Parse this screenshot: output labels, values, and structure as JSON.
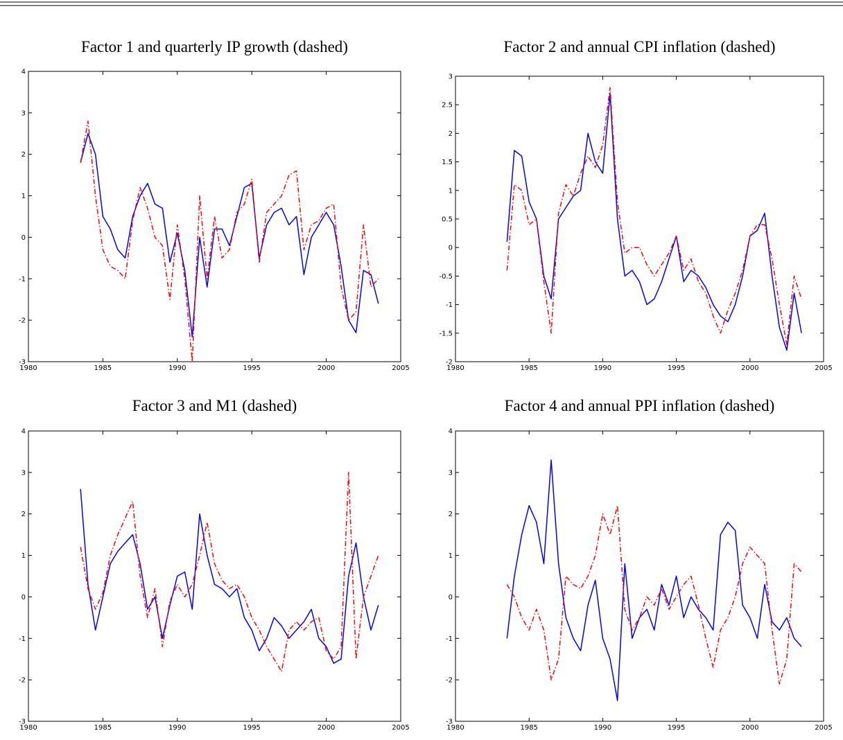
{
  "chart_data": [
    {
      "type": "line",
      "title": "Factor 1 and quarterly IP growth (dashed)",
      "x": [
        1983.5,
        1984,
        1984.5,
        1985,
        1985.5,
        1986,
        1986.5,
        1987,
        1987.5,
        1988,
        1988.5,
        1989,
        1989.5,
        1990,
        1990.5,
        1991,
        1991.5,
        1992,
        1992.5,
        1993,
        1993.5,
        1994,
        1994.5,
        1995,
        1995.5,
        1996,
        1996.5,
        1997,
        1997.5,
        1998,
        1998.5,
        1999,
        1999.5,
        2000,
        2000.5,
        2001,
        2001.5,
        2002,
        2002.5,
        2003,
        2003.5
      ],
      "series": [
        {
          "color": "#0000ff",
          "style": "solid",
          "values": [
            1.8,
            2.5,
            2.0,
            0.5,
            0.2,
            -0.3,
            -0.5,
            0.5,
            1.0,
            1.3,
            0.8,
            0.7,
            -0.6,
            0.1,
            -0.8,
            -2.4,
            0.0,
            -1.2,
            0.2,
            0.2,
            -0.2,
            0.5,
            1.2,
            1.3,
            -0.5,
            0.3,
            0.6,
            0.7,
            0.3,
            0.5,
            -0.9,
            0.0,
            0.3,
            0.6,
            0.3,
            -0.7,
            -2.0,
            -2.3,
            -0.8,
            -0.9,
            -1.6
          ]
        },
        {
          "color": "#ff0000",
          "style": "dashdot",
          "values": [
            1.8,
            2.8,
            1.0,
            -0.3,
            -0.7,
            -0.8,
            -1.0,
            0.4,
            1.2,
            0.7,
            0.0,
            -0.2,
            -1.5,
            0.3,
            -1.0,
            -3.0,
            1.0,
            -1.0,
            0.5,
            -0.5,
            -0.3,
            0.6,
            0.8,
            1.4,
            -0.6,
            0.6,
            0.8,
            1.0,
            1.5,
            1.6,
            -0.3,
            0.3,
            0.4,
            0.7,
            0.8,
            -1.2,
            -2.0,
            -1.8,
            0.3,
            -1.2,
            -1.0
          ]
        }
      ],
      "xlim": [
        1980,
        2005
      ],
      "xticks": [
        1980,
        1985,
        1990,
        1995,
        2000,
        2005
      ],
      "ylim": [
        -3,
        4
      ],
      "yticks": [
        -3,
        -2,
        -1,
        0,
        1,
        2,
        3,
        4
      ]
    },
    {
      "type": "line",
      "title": "Factor 2 and annual CPI inflation (dashed)",
      "x": [
        1983.5,
        1984,
        1984.5,
        1985,
        1985.5,
        1986,
        1986.5,
        1987,
        1987.5,
        1988,
        1988.5,
        1989,
        1989.5,
        1990,
        1990.5,
        1991,
        1991.5,
        1992,
        1992.5,
        1993,
        1993.5,
        1994,
        1994.5,
        1995,
        1995.5,
        1996,
        1996.5,
        1997,
        1997.5,
        1998,
        1998.5,
        1999,
        1999.5,
        2000,
        2000.5,
        2001,
        2001.5,
        2002,
        2002.5,
        2003,
        2003.5
      ],
      "series": [
        {
          "color": "#0000ff",
          "style": "solid",
          "values": [
            0.1,
            1.7,
            1.6,
            0.8,
            0.5,
            -0.5,
            -0.9,
            0.5,
            0.7,
            0.9,
            1.0,
            2.0,
            1.5,
            1.3,
            2.7,
            0.5,
            -0.5,
            -0.4,
            -0.6,
            -1.0,
            -0.9,
            -0.6,
            -0.2,
            0.2,
            -0.6,
            -0.4,
            -0.5,
            -0.7,
            -1.0,
            -1.2,
            -1.3,
            -1.0,
            -0.5,
            0.2,
            0.3,
            0.6,
            -0.5,
            -1.4,
            -1.8,
            -0.8,
            -1.5
          ]
        },
        {
          "color": "#ff0000",
          "style": "dashdot",
          "values": [
            -0.4,
            1.1,
            1.0,
            0.4,
            0.5,
            -0.6,
            -1.5,
            0.6,
            1.1,
            0.9,
            1.3,
            1.6,
            1.4,
            1.8,
            2.8,
            0.8,
            -0.1,
            0.0,
            0.0,
            -0.3,
            -0.5,
            -0.3,
            -0.1,
            0.2,
            -0.4,
            -0.2,
            -0.6,
            -0.8,
            -1.2,
            -1.5,
            -1.1,
            -0.8,
            -0.4,
            0.2,
            0.4,
            0.4,
            -0.2,
            -1.0,
            -1.7,
            -0.5,
            -0.9
          ]
        }
      ],
      "xlim": [
        1980,
        2005
      ],
      "xticks": [
        1980,
        1985,
        1990,
        1995,
        2000,
        2005
      ],
      "ylim": [
        -2,
        3
      ],
      "yticks": [
        -2,
        -1.5,
        -1,
        -0.5,
        0,
        0.5,
        1,
        1.5,
        2,
        2.5,
        3
      ]
    },
    {
      "type": "line",
      "title": "Factor 3 and M1 (dashed)",
      "x": [
        1983.5,
        1984,
        1984.5,
        1985,
        1985.5,
        1986,
        1986.5,
        1987,
        1987.5,
        1988,
        1988.5,
        1989,
        1989.5,
        1990,
        1990.5,
        1991,
        1991.5,
        1992,
        1992.5,
        1993,
        1993.5,
        1994,
        1994.5,
        1995,
        1995.5,
        1996,
        1996.5,
        1997,
        1997.5,
        1998,
        1998.5,
        1999,
        1999.5,
        2000,
        2000.5,
        2001,
        2001.5,
        2002,
        2002.5,
        2003,
        2003.5
      ],
      "series": [
        {
          "color": "#0000ff",
          "style": "solid",
          "values": [
            2.6,
            0.3,
            -0.8,
            0.0,
            0.8,
            1.1,
            1.3,
            1.5,
            0.8,
            -0.3,
            0.0,
            -1.0,
            -0.2,
            0.5,
            0.6,
            -0.3,
            2.0,
            1.0,
            0.3,
            0.2,
            0.0,
            0.2,
            -0.5,
            -0.8,
            -1.3,
            -1.0,
            -0.5,
            -0.7,
            -1.0,
            -0.8,
            -0.6,
            -0.3,
            -1.0,
            -1.2,
            -1.6,
            -1.5,
            0.5,
            1.3,
            0.0,
            -0.8,
            -0.2
          ]
        },
        {
          "color": "#ff0000",
          "style": "dashdot",
          "values": [
            1.2,
            0.2,
            -0.3,
            0.1,
            1.0,
            1.5,
            1.9,
            2.3,
            0.5,
            -0.5,
            0.2,
            -1.2,
            -0.1,
            0.3,
            0.0,
            0.3,
            1.0,
            1.8,
            0.8,
            0.4,
            0.2,
            0.3,
            0.0,
            -0.5,
            -0.8,
            -1.2,
            -1.5,
            -1.8,
            -0.8,
            -0.6,
            -0.8,
            -0.6,
            -0.5,
            -1.3,
            -1.5,
            -1.2,
            3.0,
            -1.5,
            0.0,
            0.5,
            1.0
          ]
        }
      ],
      "xlim": [
        1980,
        2005
      ],
      "xticks": [
        1980,
        1985,
        1990,
        1995,
        2000,
        2005
      ],
      "ylim": [
        -3,
        4
      ],
      "yticks": [
        -3,
        -2,
        -1,
        0,
        1,
        2,
        3,
        4
      ]
    },
    {
      "type": "line",
      "title": "Factor 4 and annual PPI inflation (dashed)",
      "x": [
        1983.5,
        1984,
        1984.5,
        1985,
        1985.5,
        1986,
        1986.5,
        1987,
        1987.5,
        1988,
        1988.5,
        1989,
        1989.5,
        1990,
        1990.5,
        1991,
        1991.5,
        1992,
        1992.5,
        1993,
        1993.5,
        1994,
        1994.5,
        1995,
        1995.5,
        1996,
        1996.5,
        1997,
        1997.5,
        1998,
        1998.5,
        1999,
        1999.5,
        2000,
        2000.5,
        2001,
        2001.5,
        2002,
        2002.5,
        2003,
        2003.5
      ],
      "series": [
        {
          "color": "#0000ff",
          "style": "solid",
          "values": [
            -1.0,
            0.5,
            1.5,
            2.2,
            1.8,
            0.8,
            3.3,
            0.8,
            -0.5,
            -1.0,
            -1.3,
            -0.2,
            0.4,
            -1.0,
            -1.5,
            -2.5,
            0.8,
            -1.0,
            -0.5,
            -0.3,
            -0.8,
            0.3,
            -0.2,
            0.5,
            -0.5,
            0.0,
            -0.3,
            -0.5,
            -0.8,
            1.5,
            1.8,
            1.6,
            -0.2,
            -0.5,
            -1.0,
            0.3,
            -0.6,
            -0.8,
            -0.5,
            -1.0,
            -1.2
          ]
        },
        {
          "color": "#ff0000",
          "style": "dashdot",
          "values": [
            0.3,
            0.0,
            -0.5,
            -0.8,
            -0.3,
            -0.8,
            -2.0,
            -1.5,
            0.5,
            0.3,
            0.2,
            0.5,
            1.0,
            2.0,
            1.5,
            2.2,
            -0.3,
            -0.8,
            -0.5,
            0.0,
            -0.2,
            0.2,
            -0.3,
            0.0,
            0.3,
            0.5,
            -0.2,
            -1.0,
            -1.7,
            -0.8,
            -0.5,
            0.0,
            0.8,
            1.2,
            1.0,
            0.8,
            -0.8,
            -2.1,
            -1.5,
            0.8,
            0.6
          ]
        }
      ],
      "xlim": [
        1980,
        2005
      ],
      "xticks": [
        1980,
        1985,
        1990,
        1995,
        2000,
        2005
      ],
      "ylim": [
        -3,
        4
      ],
      "yticks": [
        -3,
        -2,
        -1,
        0,
        1,
        2,
        3,
        4
      ]
    }
  ]
}
